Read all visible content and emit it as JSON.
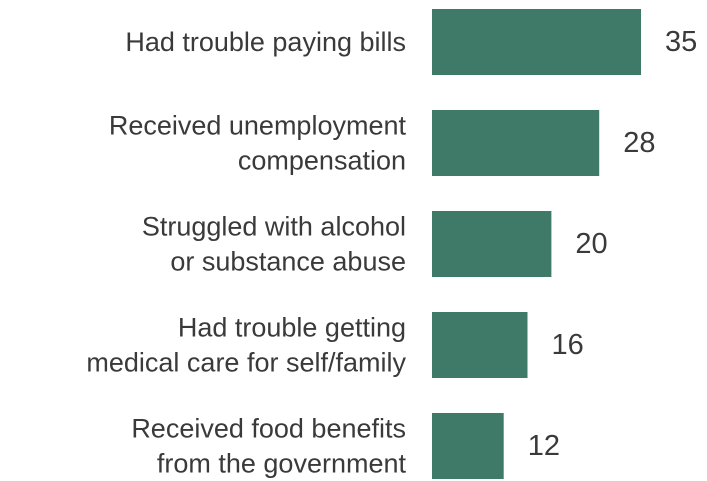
{
  "chart_data": {
    "type": "bar",
    "orientation": "horizontal",
    "categories": [
      "Had trouble paying bills",
      "Received unemployment compensation",
      "Struggled with alcohol or substance abuse",
      "Had trouble getting medical care for self/family",
      "Received food benefits from the government"
    ],
    "category_lines": [
      [
        "Had trouble paying bills"
      ],
      [
        "Received unemployment",
        "compensation"
      ],
      [
        "Struggled with alcohol",
        "or substance abuse"
      ],
      [
        "Had trouble getting",
        "medical care for self/family"
      ],
      [
        "Received food benefits",
        "from the government"
      ]
    ],
    "values": [
      35,
      28,
      20,
      16,
      12
    ],
    "value_labels": [
      "35",
      "28",
      "20",
      "16",
      "12"
    ],
    "xlim": [
      0,
      35
    ],
    "grid": false,
    "bar_color": "#3f7a68"
  }
}
